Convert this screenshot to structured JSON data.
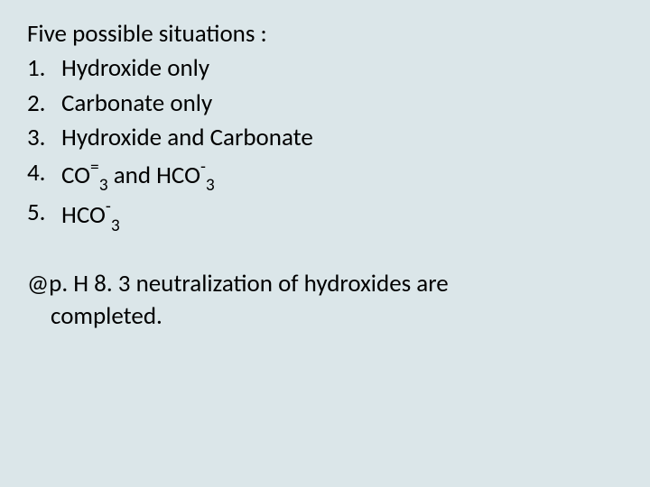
{
  "background_color": "#dbe6e9",
  "text_color": "#000000",
  "font_family": "Calibri",
  "font_size_pt": 27,
  "heading": "Five possible situations :",
  "items": [
    {
      "num": "1.",
      "text": "Hydroxide only"
    },
    {
      "num": "2.",
      "text": "Carbonate only"
    },
    {
      "num": "3.",
      "text": "Hydroxide and Carbonate"
    }
  ],
  "item4": {
    "num": "4.",
    "prefix": " CO",
    "sup1": "=",
    "sub1": "3",
    "mid": " and HCO",
    "sup2": "-",
    "sub2": "3"
  },
  "item5": {
    "num": "5.",
    "prefix": "HCO",
    "sup": "-",
    "sub": "3"
  },
  "footer_line1": "@p. H 8. 3 neutralization of hydroxides are",
  "footer_line2": "completed."
}
